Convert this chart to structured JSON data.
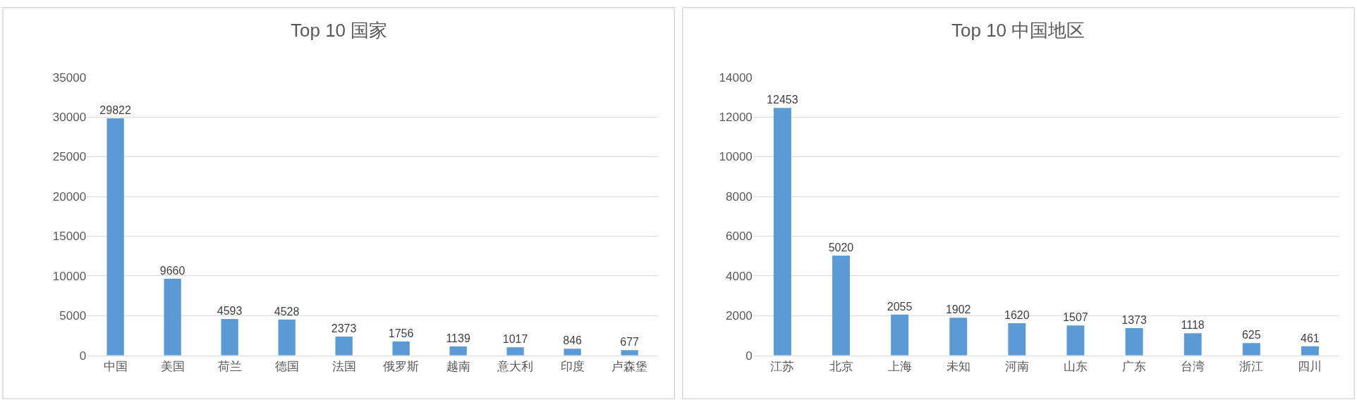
{
  "chart_data": [
    {
      "type": "bar",
      "title": "Top 10 国家",
      "categories": [
        "中国",
        "美国",
        "荷兰",
        "德国",
        "法国",
        "俄罗斯",
        "越南",
        "意大利",
        "印度",
        "卢森堡"
      ],
      "values": [
        29822,
        9660,
        4593,
        4528,
        2373,
        1756,
        1139,
        1017,
        846,
        677
      ],
      "color": "#5b9bd5",
      "ylim": [
        0,
        35000
      ],
      "yticks": [
        0,
        5000,
        10000,
        15000,
        20000,
        25000,
        30000,
        35000
      ],
      "grid": "y",
      "data_labels": true
    },
    {
      "type": "bar",
      "title": "Top 10 中国地区",
      "categories": [
        "江苏",
        "北京",
        "上海",
        "未知",
        "河南",
        "山东",
        "广东",
        "台湾",
        "浙江",
        "四川"
      ],
      "values": [
        12453,
        5020,
        2055,
        1902,
        1620,
        1507,
        1373,
        1118,
        625,
        461
      ],
      "color": "#5b9bd5",
      "ylim": [
        0,
        14000
      ],
      "yticks": [
        0,
        2000,
        4000,
        6000,
        8000,
        10000,
        12000,
        14000
      ],
      "grid": "y",
      "data_labels": true
    }
  ]
}
